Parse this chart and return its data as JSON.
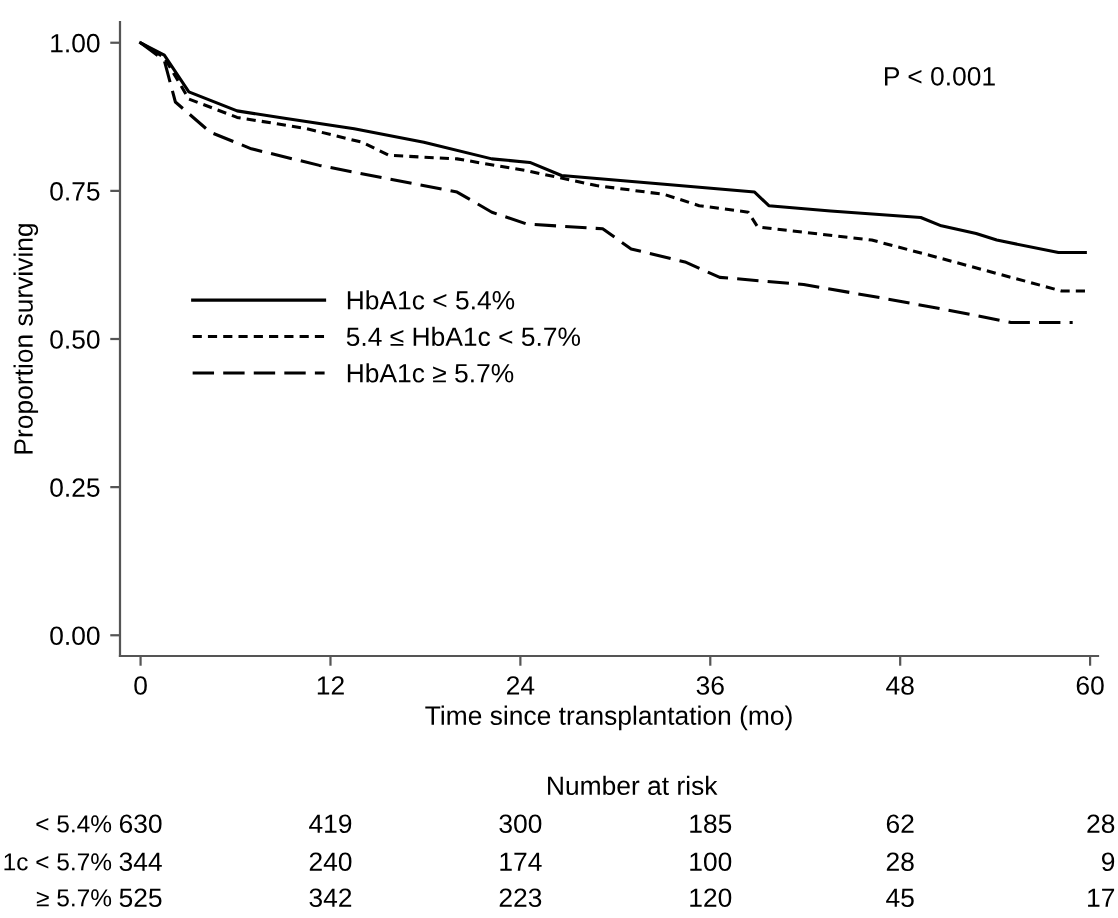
{
  "chart_data": {
    "type": "line",
    "xlabel": "Time since transplantation (mo)",
    "ylabel": "Proportion surviving",
    "xlim": [
      -1.3,
      60.5
    ],
    "xticks": [
      0,
      12,
      24,
      36,
      48,
      60
    ],
    "ylim": [
      -0.035,
      1.035
    ],
    "yticks": [
      {
        "value": 0,
        "label": "0.00"
      },
      {
        "value": 0.25,
        "label": "0.25"
      },
      {
        "value": 0.5,
        "label": "0.50"
      },
      {
        "value": 0.75,
        "label": "0.75"
      },
      {
        "value": 1,
        "label": "1.00"
      }
    ],
    "grid": false,
    "legend": "left",
    "marker": "none",
    "series": [
      {
        "name": "HbA1c < 5.4%",
        "color": "#000000",
        "line_style": "solid",
        "x": [
          0,
          1.5,
          3.05,
          6.1,
          9.2,
          13.5,
          17.9,
          22.2,
          24.6,
          26.6,
          33.1,
          38.8,
          39.7,
          43.6,
          49.3,
          50.6,
          52.8,
          54.1,
          58.0,
          59.7
        ],
        "values": [
          1.0,
          0.979,
          0.917,
          0.885,
          0.872,
          0.855,
          0.832,
          0.804,
          0.798,
          0.776,
          0.761,
          0.748,
          0.725,
          0.716,
          0.705,
          0.691,
          0.678,
          0.667,
          0.646,
          0.646
        ]
      },
      {
        "name": "5.4 ≤ HbA1c < 5.7%",
        "color": "#000000",
        "line_style": "dashed",
        "x": [
          0,
          1.5,
          3.05,
          6.1,
          10.5,
          14.0,
          15.7,
          20.0,
          24.4,
          28.8,
          33.1,
          35.3,
          38.4,
          39.0,
          46.2,
          49.9,
          58.2,
          59.7
        ],
        "values": [
          1.0,
          0.975,
          0.905,
          0.874,
          0.855,
          0.832,
          0.81,
          0.804,
          0.784,
          0.759,
          0.744,
          0.725,
          0.714,
          0.689,
          0.667,
          0.641,
          0.581,
          0.581
        ]
      },
      {
        "name": "HbA1c ≥ 5.7%",
        "color": "#000000",
        "line_style": "dashed",
        "x": [
          0,
          1.5,
          2.2,
          4.4,
          7.0,
          11.3,
          15.7,
          20.0,
          22.2,
          24.4,
          29.2,
          31.0,
          34.4,
          36.6,
          41.9,
          47.1,
          50.6,
          55.0,
          58.9
        ],
        "values": [
          1.0,
          0.97,
          0.9,
          0.849,
          0.821,
          0.793,
          0.77,
          0.748,
          0.714,
          0.694,
          0.686,
          0.652,
          0.63,
          0.604,
          0.592,
          0.568,
          0.551,
          0.528,
          0.528
        ]
      }
    ],
    "annotations": [
      "P < 0.001",
      "Number at risk",
      "< 5.4%",
      "630",
      "419",
      "300",
      "185",
      "62",
      "28",
      "1c < 5.7%",
      "344",
      "240",
      "174",
      "100",
      "28",
      "9",
      "≥ 5.7%",
      "525",
      "342",
      "223",
      "120",
      "45",
      "17"
    ]
  }
}
